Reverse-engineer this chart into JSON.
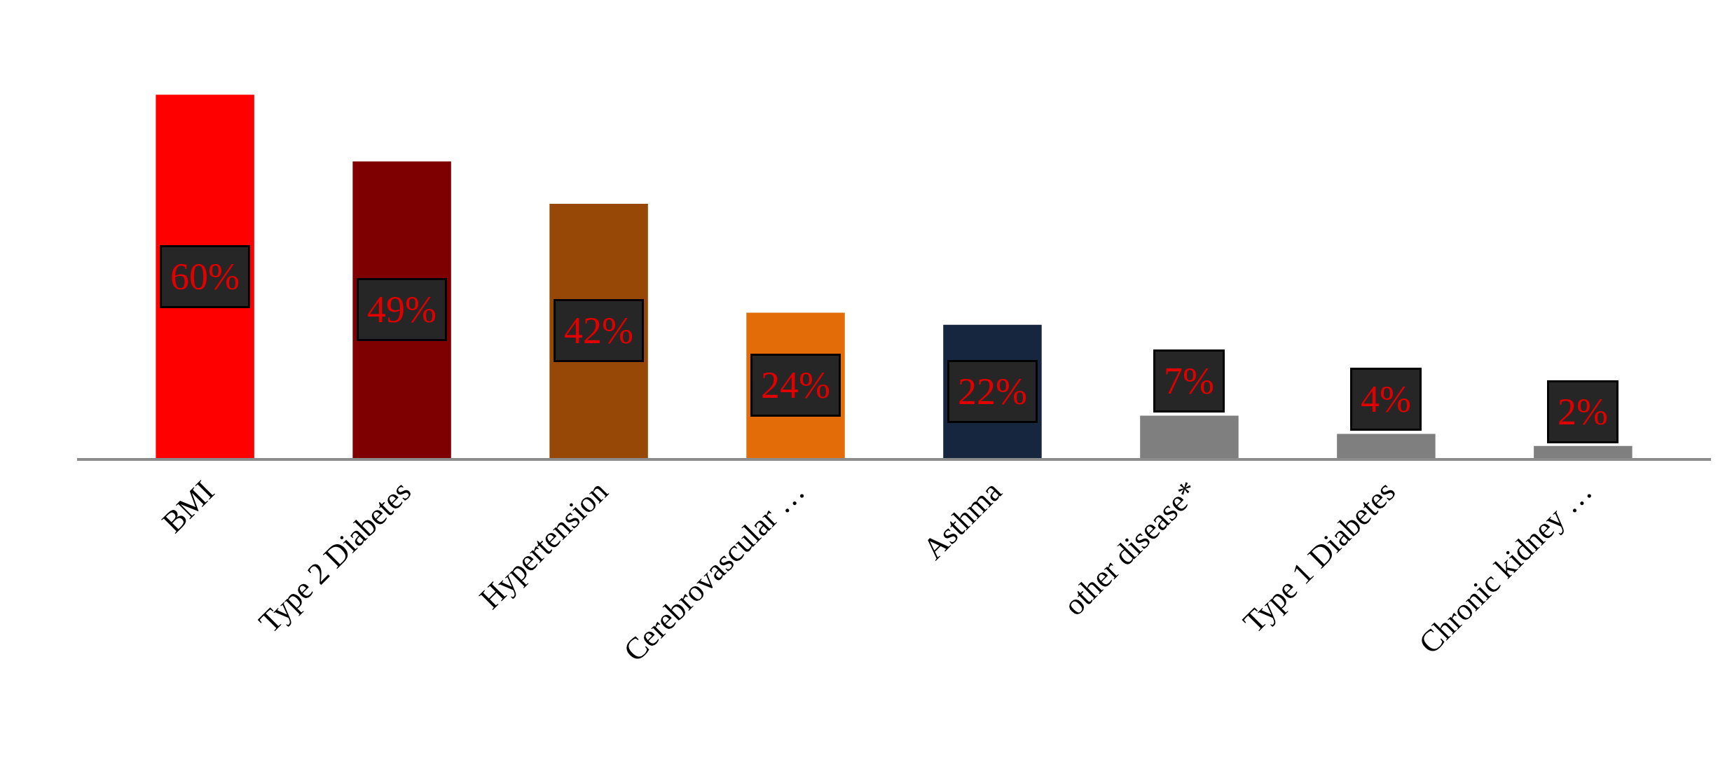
{
  "chart_data": {
    "type": "bar",
    "categories": [
      "BMI",
      "Type 2 Diabetes",
      "Hypertension",
      "Cerebrovascular …",
      "Asthma",
      "other disease*",
      "Type 1 Diabetes",
      "Chronic kidney …"
    ],
    "values": [
      60,
      49,
      42,
      24,
      22,
      7,
      4,
      2
    ],
    "value_labels": [
      "60%",
      "49%",
      "42%",
      "24%",
      "22%",
      "7%",
      "4%",
      "2%"
    ],
    "colors": [
      "#ff0000",
      "#7f0000",
      "#974806",
      "#e36c09",
      "#17263f",
      "#7f7f7f",
      "#7f7f7f",
      "#7f7f7f"
    ],
    "legend": false
  }
}
